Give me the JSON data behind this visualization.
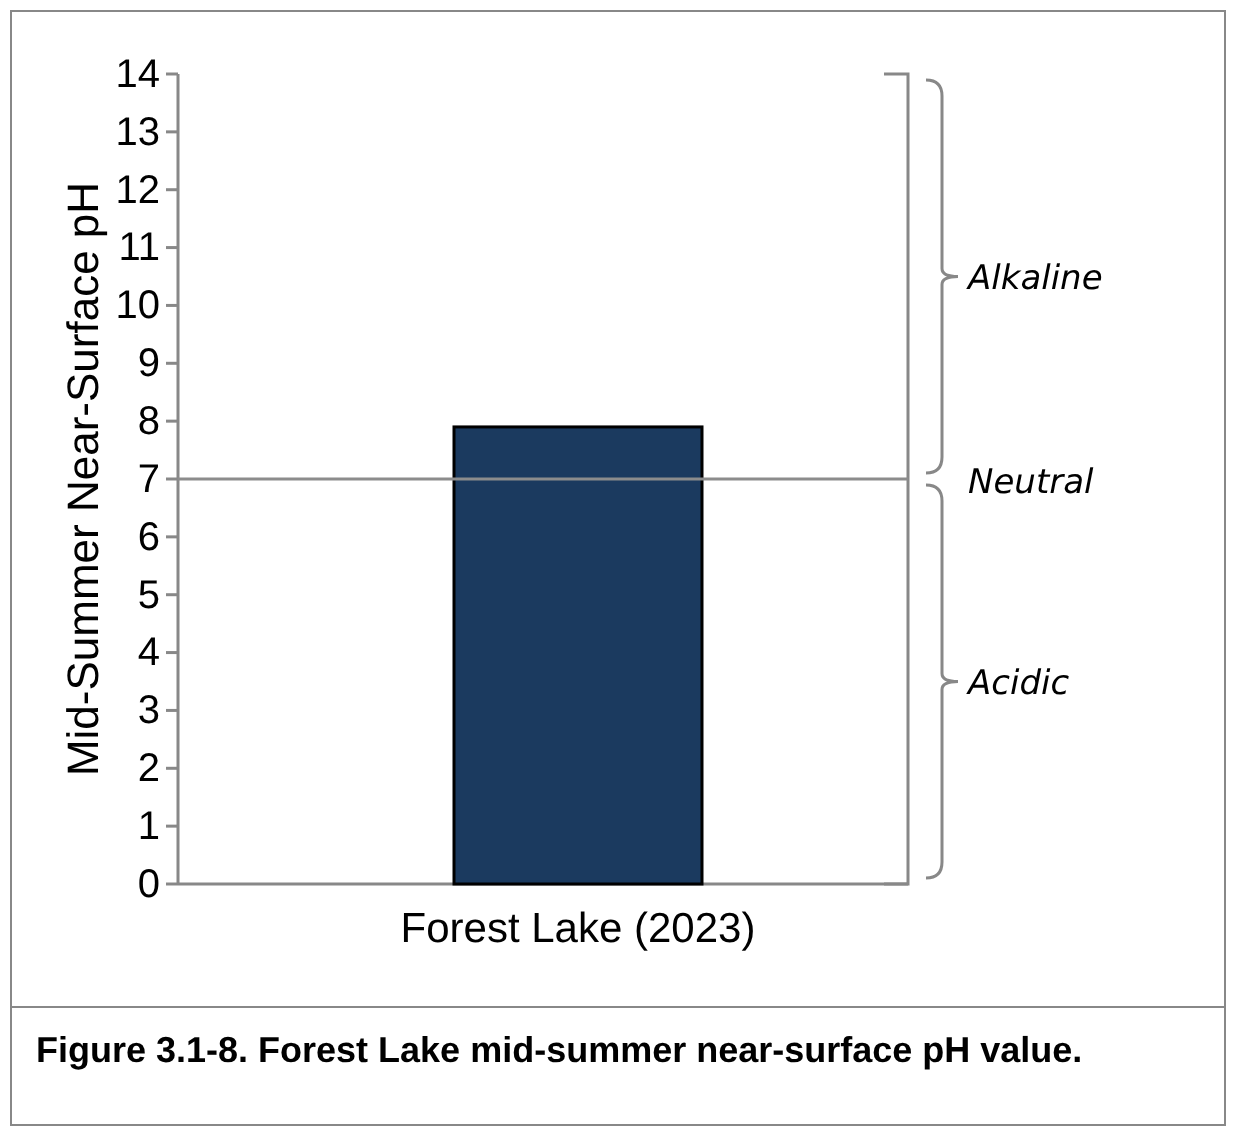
{
  "chart_data": {
    "type": "bar",
    "ylabel": "Mid-Summer Near-Surface pH",
    "categories": [
      "Forest Lake (2023)"
    ],
    "values": [
      7.9
    ],
    "color": "#1b3a5f",
    "ylim": [
      0,
      14
    ],
    "yticks": [
      0,
      1,
      2,
      3,
      4,
      5,
      6,
      7,
      8,
      9,
      10,
      11,
      12,
      13,
      14
    ],
    "grid": false,
    "ref_lines": [
      {
        "axis": "y",
        "value": 7,
        "label": "Neutral",
        "color": "#8c8c8c"
      }
    ],
    "annotations": [
      "Alkaline",
      "Acidic",
      "Figure 3.1-8.  Forest Lake mid-summer near-surface pH value."
    ]
  }
}
